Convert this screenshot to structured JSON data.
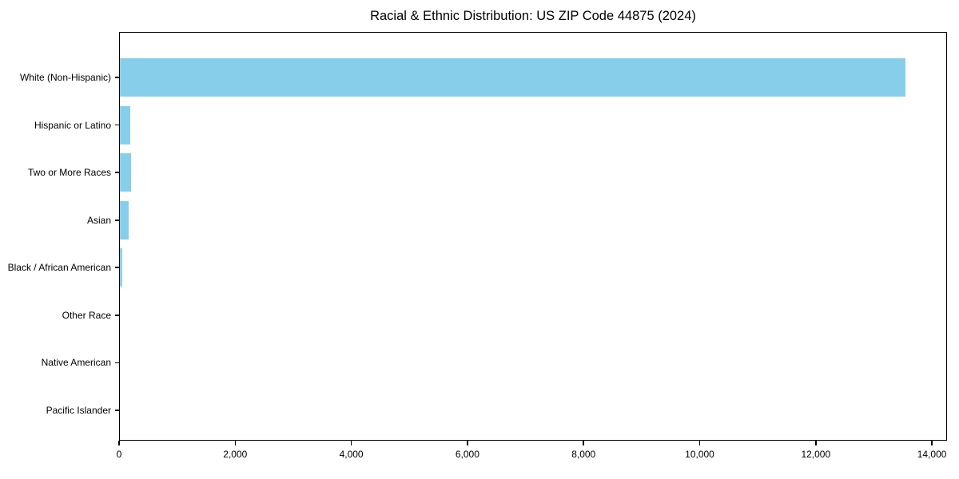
{
  "chart_data": {
    "type": "bar",
    "orientation": "horizontal",
    "title": "Racial & Ethnic Distribution: US ZIP Code 44875 (2024)",
    "categories": [
      "White (Non-Hispanic)",
      "Hispanic or Latino",
      "Two or More Races",
      "Asian",
      "Black / African American",
      "Other Race",
      "Native American",
      "Pacific Islander"
    ],
    "values": [
      13545,
      197,
      211,
      168,
      60,
      6,
      13,
      2
    ],
    "xlabel": "",
    "ylabel": "",
    "x_ticks": [
      0,
      2000,
      4000,
      6000,
      8000,
      10000,
      12000,
      14000
    ],
    "x_tick_labels": [
      "0",
      "2,000",
      "4,000",
      "6,000",
      "8,000",
      "10,000",
      "12,000",
      "14,000"
    ],
    "xlim": [
      0,
      14260
    ],
    "bar_color": "#87CEEB",
    "background_color": "#ffffff",
    "text_color": "#000000",
    "grid": false,
    "legend": null
  }
}
